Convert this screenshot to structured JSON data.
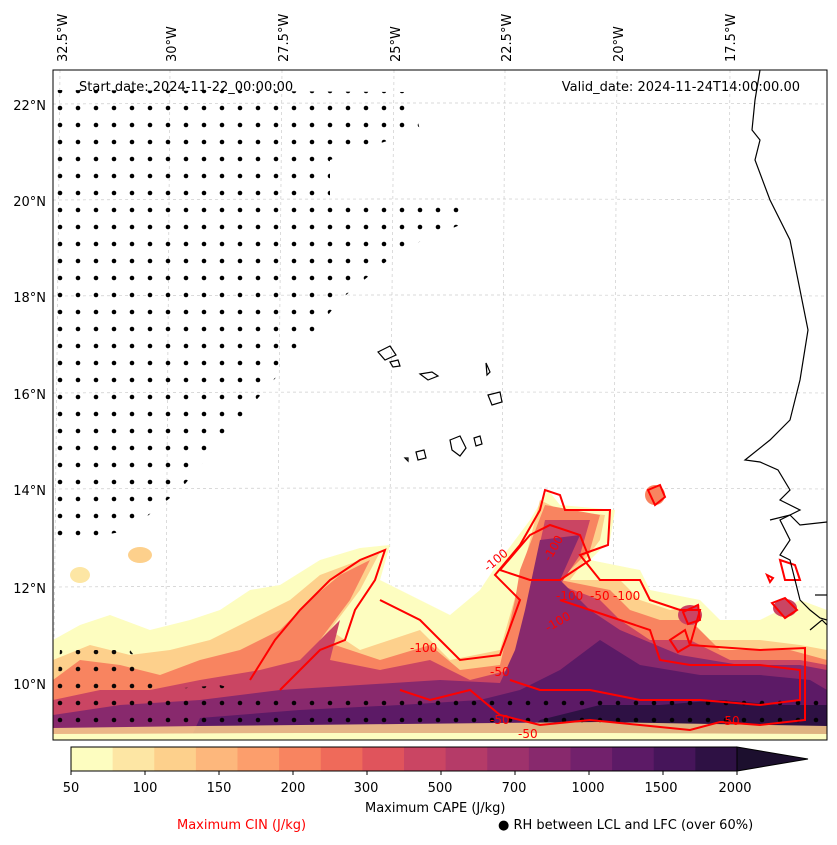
{
  "header": {
    "start_date": "Start date: 2024-11-22_00:00:00",
    "valid_date": "Valid_date: 2024-11-24T14:00:00.00"
  },
  "axes": {
    "longitude_labels": [
      "32.5°W",
      "30°W",
      "27.5°W",
      "25°W",
      "22.5°W",
      "20°W",
      "17.5°W"
    ],
    "latitude_labels": [
      "22°N",
      "20°N",
      "18°N",
      "16°N",
      "14°N",
      "12°N",
      "10°N"
    ]
  },
  "contour_labels": [
    "-100",
    "-100",
    "-100",
    "-50",
    "-100",
    "-100",
    "-50",
    "-50",
    "-50",
    "-50",
    "-100"
  ],
  "colorbar": {
    "label": "Maximum CAPE (J/kg)",
    "ticks": [
      "50",
      "100",
      "150",
      "200",
      "300",
      "500",
      "700",
      "1000",
      "1500",
      "2000"
    ],
    "colors": [
      "#fdfdc0",
      "#fde6a4",
      "#fdd08c",
      "#fdb77c",
      "#fc9e6c",
      "#f88460",
      "#ef6a5a",
      "#e0545c",
      "#ca4563",
      "#b53b68",
      "#9e326c",
      "#88296d",
      "#72216c",
      "#5c1a66",
      "#46155a",
      "#2e1144",
      "#1c0f2e"
    ]
  },
  "legend": {
    "cin_label": "Maximum CIN (J/kg)",
    "rh_label": "● RH between LCL and LFC (over 60%)",
    "cin_color": "#ff0000"
  }
}
